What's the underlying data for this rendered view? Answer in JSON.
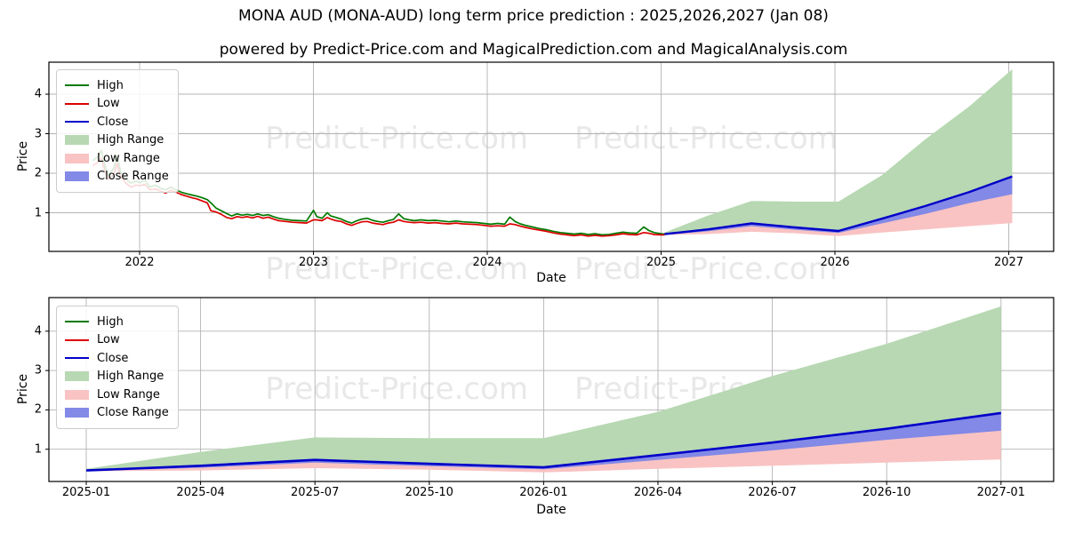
{
  "title": "MONA AUD (MONA-AUD) long term price prediction : 2025,2026,2027 (Jan 08)",
  "axes_title": "powered by Predict-Price.com and MagicalPrediction.com and MagicalAnalysis.com",
  "watermark": {
    "text": "Predict-Price.com",
    "color": "#e8e8e8"
  },
  "colors": {
    "high_line": "#007a00",
    "low_line": "#dc0000",
    "close_line": "#0000c8",
    "high_range_fill": "#b7d8b2",
    "low_range_fill": "#f9c3c3",
    "close_range_fill": "#8289e6",
    "grid": "#b3b3b3",
    "spine": "#000000"
  },
  "legend": {
    "items": [
      {
        "label": "High",
        "swatch": "line",
        "color": "#007a00"
      },
      {
        "label": "Low",
        "swatch": "line",
        "color": "#dc0000"
      },
      {
        "label": "Close",
        "swatch": "line",
        "color": "#0000c8"
      },
      {
        "label": "High Range",
        "swatch": "patch",
        "color": "#b7d8b2"
      },
      {
        "label": "Low Range",
        "swatch": "patch",
        "color": "#f9c3c3"
      },
      {
        "label": "Close Range",
        "swatch": "patch",
        "color": "#8289e6"
      }
    ]
  },
  "chart_data": [
    {
      "type": "line",
      "name": "long-term-history-and-forecast",
      "xlabel": "Date",
      "ylabel": "Price",
      "grid": true,
      "legend_position": "upper-left",
      "x_tick_labels": [
        "2022",
        "2023",
        "2024",
        "2025",
        "2026",
        "2027"
      ],
      "x_tick_years": [
        2022,
        2023,
        2024,
        2025,
        2026,
        2027
      ],
      "y_ticks": [
        1,
        2,
        3,
        4
      ],
      "ylim": [
        0,
        4.8
      ],
      "historical": {
        "columns": [
          "year",
          "high",
          "low"
        ],
        "rows": [
          [
            2021.73,
            2.32,
            2.18
          ],
          [
            2021.76,
            2.42,
            2.28
          ],
          [
            2021.78,
            2.58,
            2.38
          ],
          [
            2021.8,
            2.2,
            2.05
          ],
          [
            2021.82,
            1.95,
            1.85
          ],
          [
            2021.85,
            2.12,
            1.95
          ],
          [
            2021.87,
            2.45,
            2.25
          ],
          [
            2021.89,
            2.05,
            1.92
          ],
          [
            2021.92,
            1.85,
            1.75
          ],
          [
            2021.95,
            1.75,
            1.65
          ],
          [
            2021.98,
            1.8,
            1.7
          ],
          [
            2022.0,
            1.76,
            1.68
          ],
          [
            2022.03,
            1.82,
            1.72
          ],
          [
            2022.06,
            1.65,
            1.58
          ],
          [
            2022.09,
            1.7,
            1.6
          ],
          [
            2022.12,
            1.62,
            1.55
          ],
          [
            2022.15,
            1.58,
            1.5
          ],
          [
            2022.18,
            1.65,
            1.57
          ],
          [
            2022.21,
            1.58,
            1.52
          ],
          [
            2022.24,
            1.52,
            1.46
          ],
          [
            2022.27,
            1.48,
            1.42
          ],
          [
            2022.3,
            1.45,
            1.38
          ],
          [
            2022.33,
            1.42,
            1.35
          ],
          [
            2022.36,
            1.38,
            1.3
          ],
          [
            2022.39,
            1.33,
            1.25
          ],
          [
            2022.41,
            1.25,
            1.05
          ],
          [
            2022.44,
            1.12,
            1.02
          ],
          [
            2022.47,
            1.05,
            0.96
          ],
          [
            2022.5,
            0.98,
            0.88
          ],
          [
            2022.53,
            0.92,
            0.85
          ],
          [
            2022.56,
            0.97,
            0.9
          ],
          [
            2022.59,
            0.94,
            0.88
          ],
          [
            2022.62,
            0.96,
            0.9
          ],
          [
            2022.65,
            0.93,
            0.87
          ],
          [
            2022.68,
            0.97,
            0.91
          ],
          [
            2022.71,
            0.93,
            0.86
          ],
          [
            2022.74,
            0.95,
            0.89
          ],
          [
            2022.77,
            0.9,
            0.84
          ],
          [
            2022.8,
            0.86,
            0.8
          ],
          [
            2022.84,
            0.83,
            0.78
          ],
          [
            2022.88,
            0.81,
            0.76
          ],
          [
            2022.92,
            0.8,
            0.75
          ],
          [
            2022.96,
            0.79,
            0.74
          ],
          [
            2023.0,
            1.06,
            0.82
          ],
          [
            2023.02,
            0.9,
            0.82
          ],
          [
            2023.05,
            0.86,
            0.8
          ],
          [
            2023.08,
            1.0,
            0.88
          ],
          [
            2023.1,
            0.92,
            0.84
          ],
          [
            2023.13,
            0.88,
            0.8
          ],
          [
            2023.16,
            0.84,
            0.78
          ],
          [
            2023.19,
            0.78,
            0.72
          ],
          [
            2023.22,
            0.74,
            0.68
          ],
          [
            2023.25,
            0.8,
            0.73
          ],
          [
            2023.28,
            0.84,
            0.77
          ],
          [
            2023.31,
            0.86,
            0.78
          ],
          [
            2023.34,
            0.81,
            0.74
          ],
          [
            2023.37,
            0.78,
            0.72
          ],
          [
            2023.4,
            0.76,
            0.7
          ],
          [
            2023.43,
            0.8,
            0.74
          ],
          [
            2023.46,
            0.83,
            0.76
          ],
          [
            2023.49,
            0.97,
            0.82
          ],
          [
            2023.52,
            0.85,
            0.78
          ],
          [
            2023.55,
            0.82,
            0.76
          ],
          [
            2023.58,
            0.8,
            0.75
          ],
          [
            2023.62,
            0.82,
            0.76
          ],
          [
            2023.66,
            0.8,
            0.74
          ],
          [
            2023.7,
            0.81,
            0.75
          ],
          [
            2023.74,
            0.79,
            0.73
          ],
          [
            2023.78,
            0.77,
            0.72
          ],
          [
            2023.82,
            0.79,
            0.74
          ],
          [
            2023.86,
            0.77,
            0.72
          ],
          [
            2023.9,
            0.76,
            0.71
          ],
          [
            2023.94,
            0.75,
            0.7
          ],
          [
            2023.98,
            0.73,
            0.68
          ],
          [
            2024.02,
            0.71,
            0.66
          ],
          [
            2024.06,
            0.73,
            0.67
          ],
          [
            2024.1,
            0.71,
            0.66
          ],
          [
            2024.13,
            0.89,
            0.72
          ],
          [
            2024.16,
            0.78,
            0.7
          ],
          [
            2024.19,
            0.72,
            0.66
          ],
          [
            2024.22,
            0.68,
            0.63
          ],
          [
            2024.26,
            0.64,
            0.59
          ],
          [
            2024.3,
            0.6,
            0.56
          ],
          [
            2024.34,
            0.57,
            0.53
          ],
          [
            2024.38,
            0.53,
            0.49
          ],
          [
            2024.42,
            0.5,
            0.46
          ],
          [
            2024.46,
            0.48,
            0.44
          ],
          [
            2024.5,
            0.46,
            0.42
          ],
          [
            2024.54,
            0.48,
            0.44
          ],
          [
            2024.58,
            0.45,
            0.41
          ],
          [
            2024.62,
            0.47,
            0.43
          ],
          [
            2024.66,
            0.44,
            0.41
          ],
          [
            2024.7,
            0.45,
            0.42
          ],
          [
            2024.74,
            0.48,
            0.44
          ],
          [
            2024.78,
            0.51,
            0.47
          ],
          [
            2024.82,
            0.49,
            0.45
          ],
          [
            2024.86,
            0.48,
            0.44
          ],
          [
            2024.9,
            0.64,
            0.5
          ],
          [
            2024.93,
            0.55,
            0.48
          ],
          [
            2024.96,
            0.5,
            0.45
          ],
          [
            2025.0,
            0.47,
            0.44
          ],
          [
            2025.02,
            0.46,
            0.44
          ]
        ]
      },
      "forecast": {
        "years": [
          2025.02,
          2025.27,
          2025.52,
          2025.77,
          2026.02,
          2026.27,
          2026.52,
          2026.77,
          2027.02
        ],
        "close": [
          0.46,
          0.58,
          0.73,
          0.63,
          0.54,
          0.85,
          1.17,
          1.52,
          1.92
        ],
        "high_range_top": [
          0.5,
          0.93,
          1.3,
          1.28,
          1.28,
          1.95,
          2.86,
          3.68,
          4.63
        ],
        "low_range_bottom": [
          0.44,
          0.46,
          0.52,
          0.48,
          0.41,
          0.5,
          0.58,
          0.66,
          0.74
        ],
        "close_range_bottom": [
          0.44,
          0.53,
          0.66,
          0.57,
          0.49,
          0.73,
          0.97,
          1.24,
          1.47
        ]
      }
    },
    {
      "type": "area",
      "name": "forecast-detail",
      "xlabel": "Date",
      "ylabel": "Price",
      "grid": true,
      "legend_position": "upper-left",
      "x_tick_labels": [
        "2025-01",
        "2025-04",
        "2025-07",
        "2025-10",
        "2026-01",
        "2026-04",
        "2026-07",
        "2026-10",
        "2027-01"
      ],
      "y_ticks": [
        1,
        2,
        3,
        4
      ],
      "ylim": [
        0.15,
        4.85
      ],
      "forecast": {
        "dates": [
          "2025-01",
          "2025-04",
          "2025-07",
          "2025-10",
          "2026-01",
          "2026-04",
          "2026-07",
          "2026-10",
          "2027-01"
        ],
        "close": [
          0.46,
          0.58,
          0.73,
          0.63,
          0.54,
          0.85,
          1.17,
          1.52,
          1.92
        ],
        "high_range_top": [
          0.5,
          0.93,
          1.3,
          1.28,
          1.28,
          1.95,
          2.86,
          3.68,
          4.63
        ],
        "low_range_bottom": [
          0.44,
          0.46,
          0.52,
          0.48,
          0.41,
          0.5,
          0.58,
          0.66,
          0.74
        ],
        "close_range_bottom": [
          0.44,
          0.53,
          0.66,
          0.57,
          0.49,
          0.73,
          0.97,
          1.24,
          1.47
        ]
      }
    }
  ]
}
